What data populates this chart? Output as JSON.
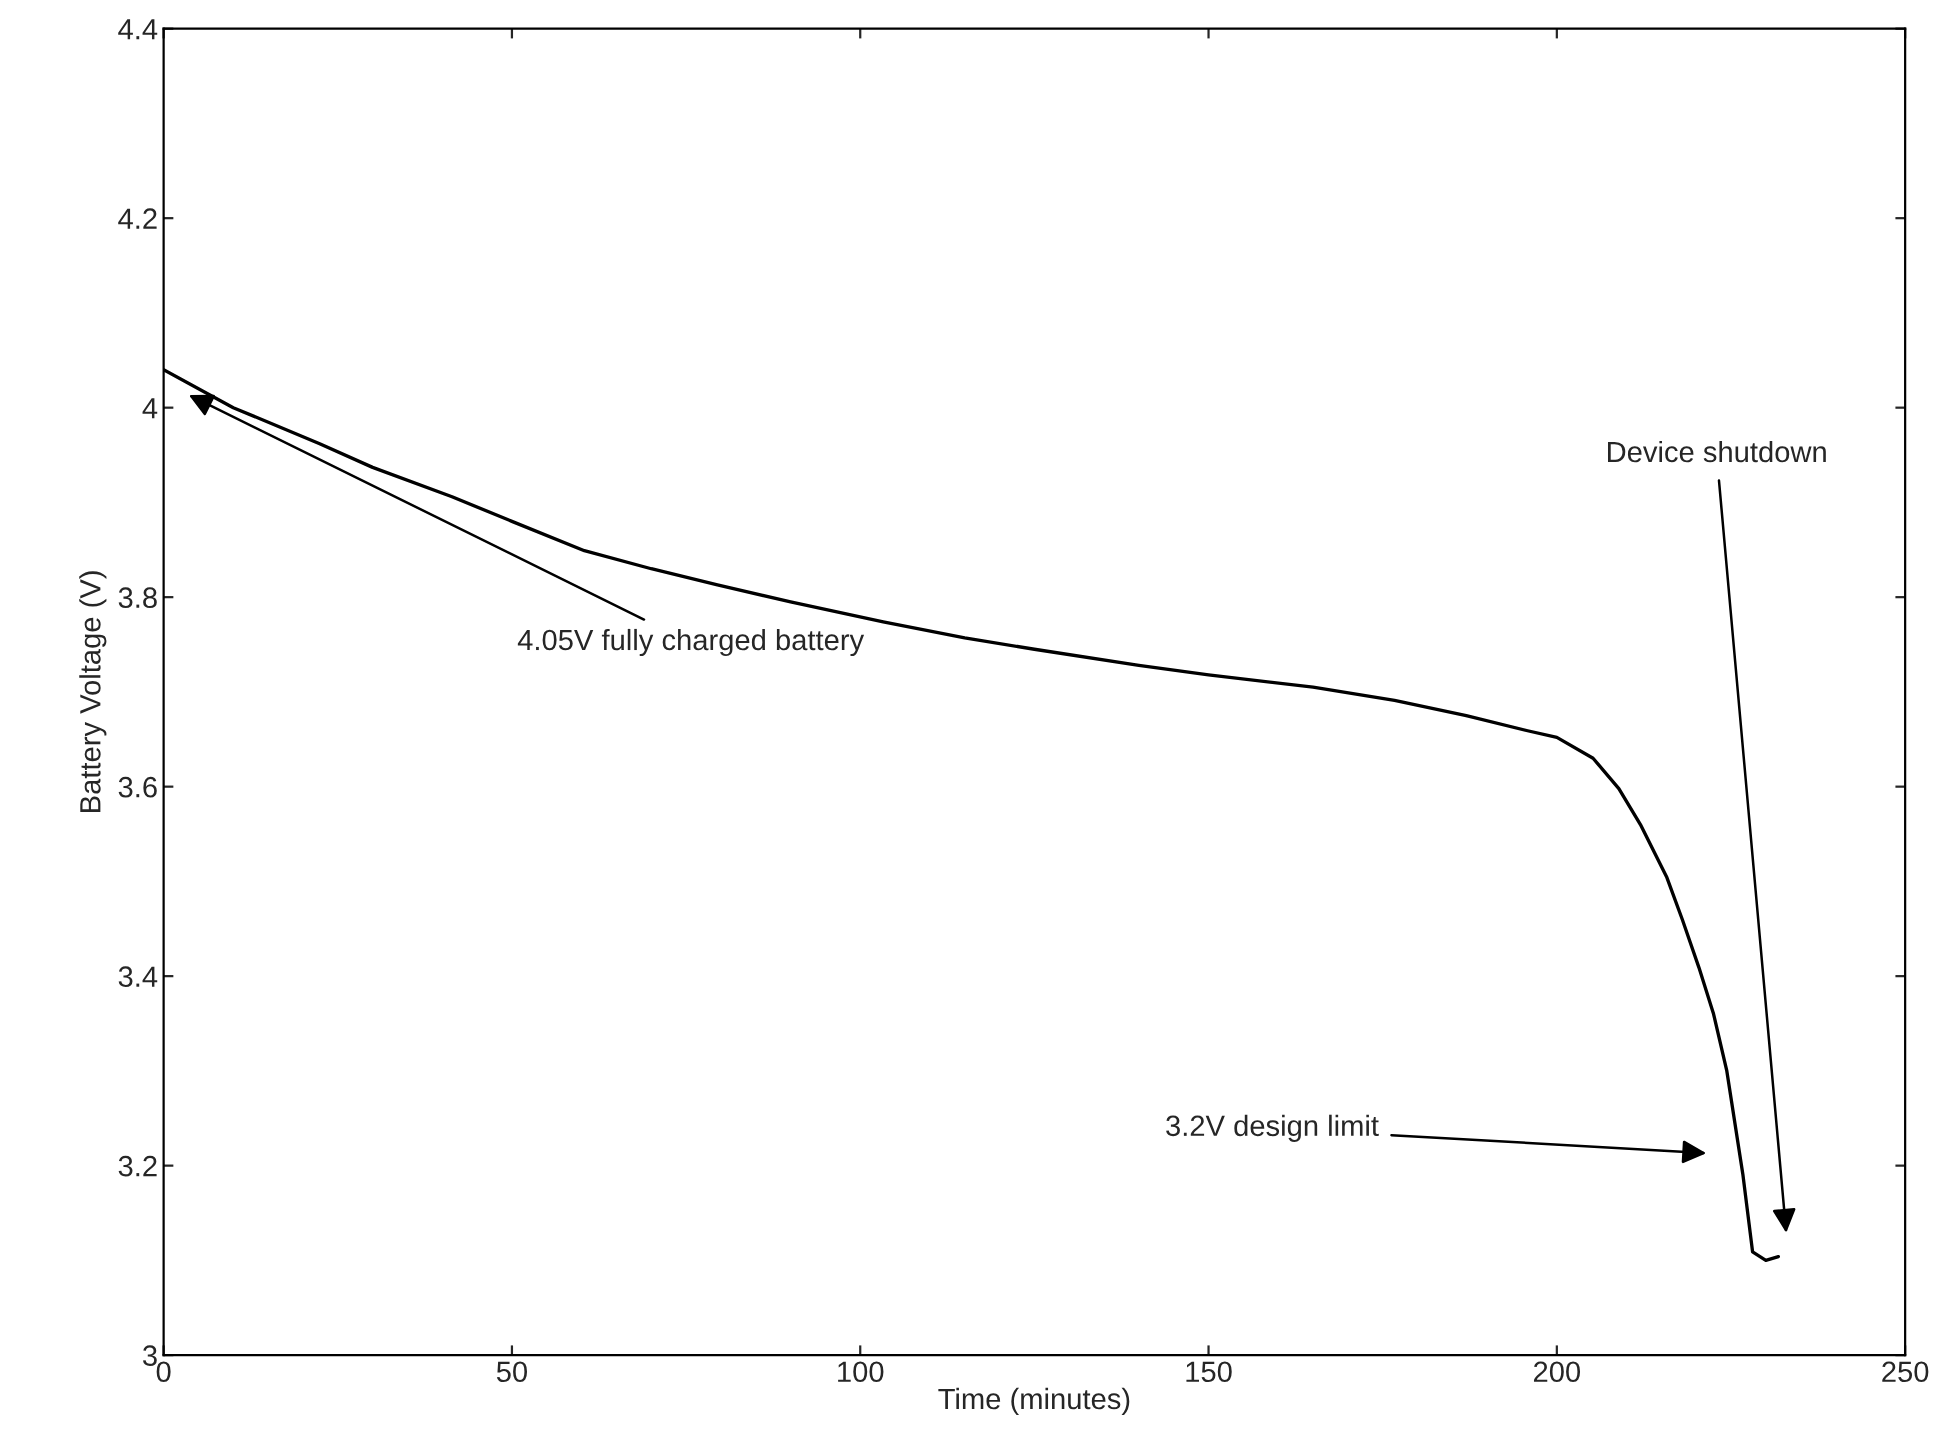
{
  "chart_data": {
    "type": "line",
    "xlabel": "Time (minutes)",
    "ylabel": "Battery Voltage (V)",
    "x": [
      0,
      10,
      22.4,
      30,
      41.4,
      50,
      60.4,
      70,
      79.5,
      90,
      103.3,
      115,
      125,
      140,
      150,
      165,
      176.7,
      187,
      195.8,
      200,
      205.2,
      208.9,
      212,
      215.8,
      218,
      220.4,
      222.5,
      224.4,
      226.7,
      228.1,
      230,
      231.8
    ],
    "series": [
      {
        "color": "#000000",
        "values": [
          4.04,
          4.0,
          3.962,
          3.937,
          3.906,
          3.88,
          3.849,
          3.83,
          3.813,
          3.795,
          3.774,
          3.757,
          3.745,
          3.728,
          3.718,
          3.705,
          3.691,
          3.675,
          3.659,
          3.652,
          3.63,
          3.598,
          3.56,
          3.504,
          3.46,
          3.409,
          3.36,
          3.3,
          3.191,
          3.109,
          3.1,
          3.104
        ]
      }
    ],
    "xlim": [
      0,
      250
    ],
    "ylim": [
      3,
      4.4
    ],
    "xticks": [
      0,
      50,
      100,
      150,
      200,
      250
    ],
    "yticks": [
      3,
      3.2,
      3.4,
      3.6,
      3.8,
      4,
      4.2,
      4.4
    ],
    "grid": false,
    "marker": "none",
    "line_style": "solid",
    "annotations": [
      {
        "text": "4.05V fully charged battery",
        "x": 2.9,
        "y": 4.016
      },
      "3.2V design limit",
      "Device shutdown"
    ]
  }
}
